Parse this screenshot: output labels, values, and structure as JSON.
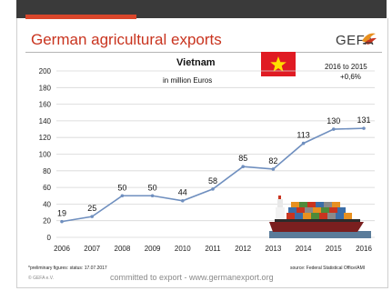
{
  "header": {
    "title": "German agricultural exports",
    "brand": "GEFA"
  },
  "chart_data": {
    "type": "line",
    "title": "Vietnam",
    "subtitle": "in million  Euros",
    "categories": [
      "2006",
      "2007",
      "2008",
      "2009",
      "2010",
      "2011",
      "2012",
      "2013",
      "2014",
      "2015",
      "2016"
    ],
    "values": [
      19,
      25,
      50,
      50,
      44,
      58,
      85,
      82,
      113,
      130,
      131
    ],
    "yticks": [
      0,
      20,
      40,
      60,
      80,
      100,
      120,
      140,
      160,
      180,
      200
    ],
    "ylim": [
      0,
      200
    ],
    "grid": true,
    "series_color": "#6f8fbf",
    "data_labels": true
  },
  "comparison": {
    "label": "2016 to 2015",
    "value": "+0,6%"
  },
  "footer": {
    "footnote": "*preliminary figures: status: 17.07.2017",
    "source": "source: Federal Statistical Office/AMI",
    "copyright": "© GEFA e.V.",
    "slogan": "committed to export - www.germanexport.org"
  },
  "colors": {
    "accent": "#c9341f",
    "flag_red": "#e01b23",
    "flag_star": "#ffde00",
    "line": "#6f8fbf",
    "grid": "#d6d6d6"
  },
  "icons": {
    "flag": "vietnam-flag-icon",
    "ship": "container-ship-icon",
    "logo": "gefa-logo-icon"
  }
}
